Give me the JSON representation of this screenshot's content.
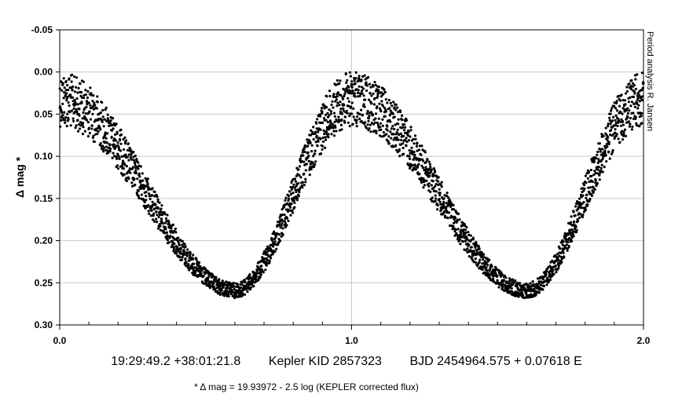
{
  "chart_data": {
    "type": "scatter",
    "title": "",
    "ylabel": "Δ mag *",
    "xlabel": "",
    "xlim": [
      0.0,
      2.0
    ],
    "ylim": [
      -0.05,
      0.3
    ],
    "y_inverted": true,
    "grid": true,
    "x_ticks": [
      0.0,
      1.0,
      2.0
    ],
    "x_tick_labels": [
      "0.0",
      "1.0",
      "2.0"
    ],
    "x_minor_step": 0.1,
    "y_ticks": [
      -0.05,
      0.0,
      0.05,
      0.1,
      0.15,
      0.2,
      0.25,
      0.3
    ],
    "y_tick_labels": [
      "-0.05",
      "0.00",
      "0.05",
      "0.10",
      "0.15",
      "0.20",
      "0.25",
      "0.30"
    ],
    "marker_color": "#000000",
    "curve_model": {
      "phase_of_maximum": 0.0,
      "phase_of_minimum": 0.6,
      "mag_at_minimum": 0.26,
      "max_band_bright": 0.0,
      "max_band_faint": 0.065,
      "min_band_bright": 0.25,
      "min_band_faint": 0.268
    },
    "side_annotation": "Period analysis  R. Jansen"
  },
  "captions": {
    "main": "19:29:49.2 +38:01:21.8        Kepler KID 2857323        BJD 2454964.575 + 0.07618 E",
    "footnote": "* Δ mag = 19.93972 - 2.5 log (KEPLER corrected flux)"
  }
}
